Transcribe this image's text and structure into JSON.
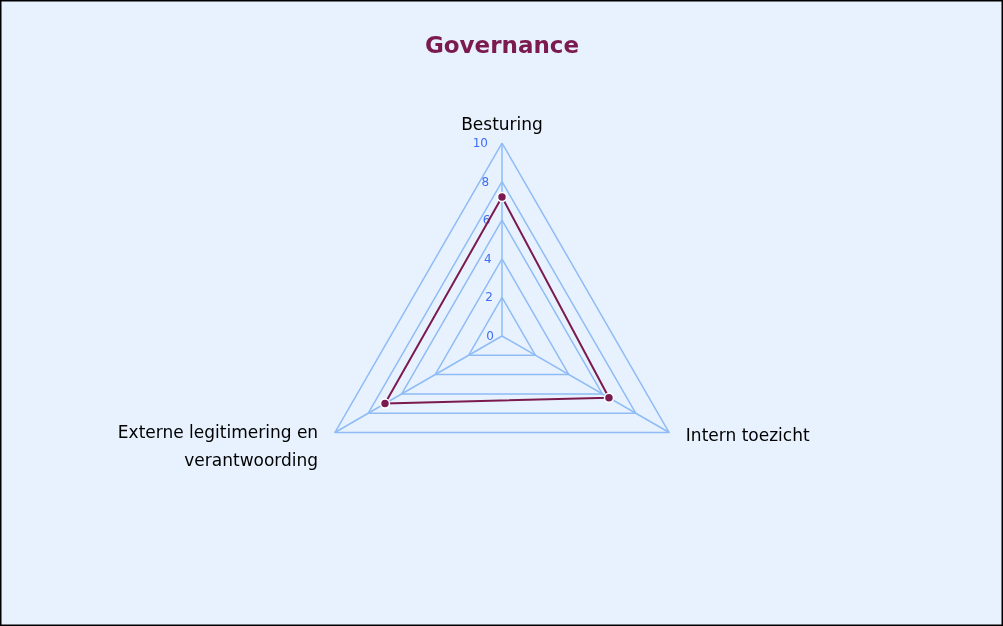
{
  "chart_data": {
    "type": "radar",
    "title": "Governance",
    "categories": [
      "Besturing",
      "Intern toezicht",
      "Externe legitimering en verantwoording"
    ],
    "series": [
      {
        "color": "#7b1a4f",
        "values": [
          7.2,
          6.4,
          7.0
        ]
      }
    ],
    "ylim": [
      0,
      10
    ],
    "yticks": [
      0,
      2,
      4,
      6,
      8,
      10
    ],
    "grid": true,
    "marker": "circle"
  }
}
